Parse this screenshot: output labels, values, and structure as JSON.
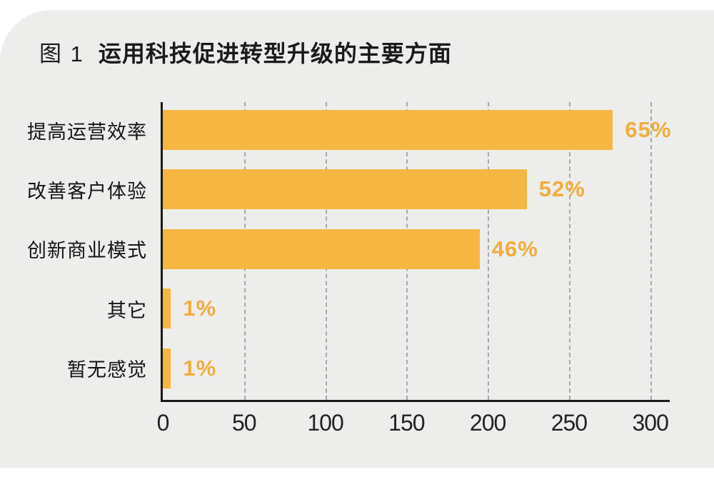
{
  "title": {
    "figure_label": "图 1",
    "text": "运用科技促进转型升级的主要方面"
  },
  "colors": {
    "page_bg": "#FFFFFF",
    "panel_bg": "#EDEDEB",
    "bar": "#F6B642",
    "value_label": "#F2AC3D",
    "axis": "#1A1A1A",
    "gridline": "#A8A8A8",
    "category_label": "#141414",
    "tick_label": "#222222"
  },
  "chart_data": {
    "type": "bar",
    "orientation": "horizontal",
    "title": "图 1 运用科技促进转型升级的主要方面",
    "categories": [
      "提高运营效率",
      "改善客户体验",
      "创新商业模式",
      "其它",
      "暂无感觉"
    ],
    "values": [
      277,
      224,
      195,
      5,
      5
    ],
    "value_labels": [
      "65%",
      "52%",
      "46%",
      "1%",
      "1%"
    ],
    "percent_values": [
      65,
      52,
      46,
      1,
      1
    ],
    "xticks": [
      0,
      50,
      100,
      150,
      200,
      250,
      300
    ],
    "xlim": [
      0,
      312
    ],
    "xlabel": "",
    "ylabel": "",
    "grid": "dashed-vertical-behind-bars",
    "legend": "none",
    "bar_color": "#F6B642",
    "value_label_color": "#F2AC3D"
  }
}
